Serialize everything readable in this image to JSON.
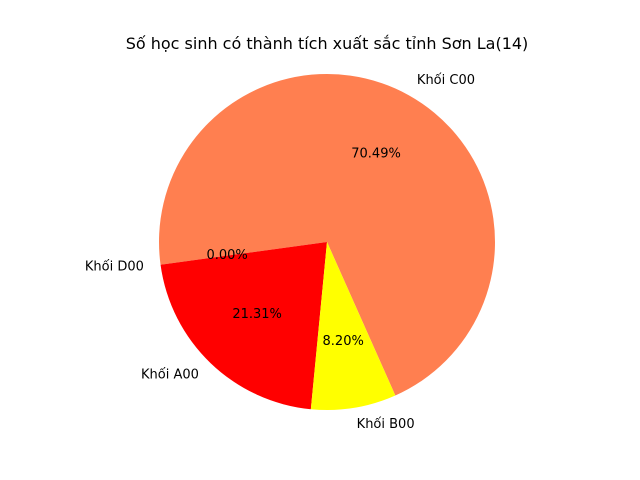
{
  "chart_data": {
    "type": "pie",
    "title": "Số học sinh có thành tích xuất sắc tỉnh Sơn La(14)",
    "slices": [
      {
        "label": "Khối C00",
        "percent": 70.49,
        "percent_label": "70.49%",
        "color": "#ff7f50"
      },
      {
        "label": "Khối D00",
        "percent": 0.0,
        "percent_label": "0.00%",
        "color": "#ffa500"
      },
      {
        "label": "Khối A00",
        "percent": 21.31,
        "percent_label": "21.31%",
        "color": "#ff0000"
      },
      {
        "label": "Khối B00",
        "percent": 8.2,
        "percent_label": "8.20%",
        "color": "#ffff00"
      }
    ],
    "start_angle_deg": -66,
    "direction": "counterclockwise",
    "legend": "none"
  }
}
